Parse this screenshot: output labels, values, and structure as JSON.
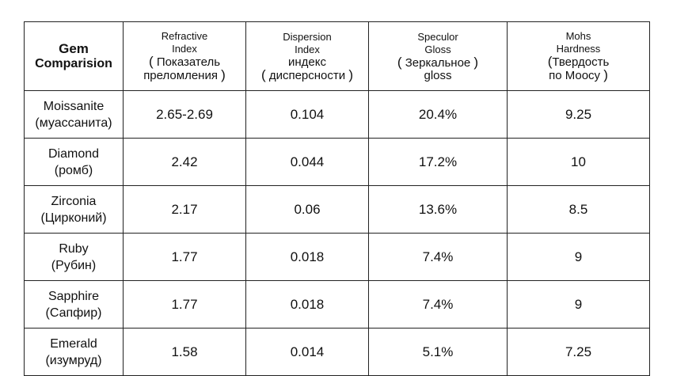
{
  "table": {
    "corner": {
      "line1": "Gem",
      "line2": "Comparision"
    },
    "columns": [
      {
        "en1": "Refractive",
        "en2": "Index",
        "ru1": "Показатель",
        "ru2": "преломления"
      },
      {
        "en1": "Dispersion",
        "en2": "Index",
        "ru1": "индекс",
        "ru2": "дисперсности"
      },
      {
        "en1": "Speculor",
        "en2": "Gloss",
        "ru1": "Зеркальное",
        "ru2": "gloss"
      },
      {
        "en1": "Mohs",
        "en2": "Hardness",
        "ru1": "Твердость",
        "ru2": "по Моосу"
      }
    ],
    "rows": [
      {
        "name": "Moissanite",
        "name_ru": "(муассанита)",
        "refractive": "2.65-2.69",
        "dispersion": "0.104",
        "gloss": "20.4%",
        "hardness": "9.25"
      },
      {
        "name": "Diamond",
        "name_ru": "(ромб)",
        "refractive": "2.42",
        "dispersion": "0.044",
        "gloss": "17.2%",
        "hardness": "10"
      },
      {
        "name": "Zirconia",
        "name_ru": "(Цирконий)",
        "refractive": "2.17",
        "dispersion": "0.06",
        "gloss": "13.6%",
        "hardness": "8.5"
      },
      {
        "name": "Ruby",
        "name_ru": "(Рубин)",
        "refractive": "1.77",
        "dispersion": "0.018",
        "gloss": "7.4%",
        "hardness": "9"
      },
      {
        "name": "Sapphire",
        "name_ru": "(Сапфир)",
        "refractive": "1.77",
        "dispersion": "0.018",
        "gloss": "7.4%",
        "hardness": "9"
      },
      {
        "name": "Emerald",
        "name_ru": "(изумруд)",
        "refractive": "1.58",
        "dispersion": "0.014",
        "gloss": "5.1%",
        "hardness": "7.25"
      }
    ]
  }
}
